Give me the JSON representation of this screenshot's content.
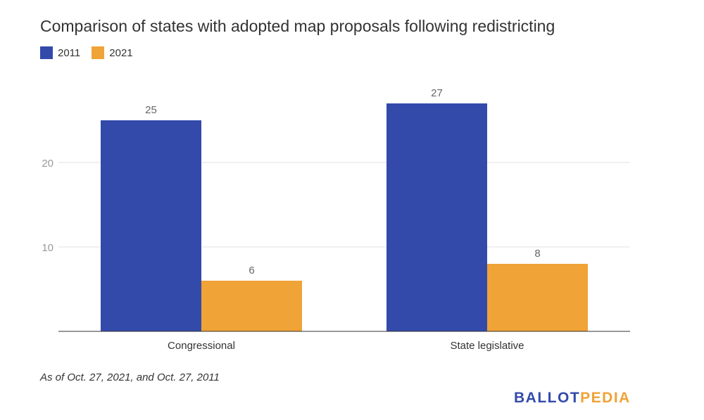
{
  "chart_data": {
    "type": "bar",
    "title": "Comparison of states with adopted map proposals following redistricting",
    "categories": [
      "Congressional",
      "State legislative"
    ],
    "series": [
      {
        "name": "2011",
        "color": "#334aab",
        "values": [
          25,
          27
        ]
      },
      {
        "name": "2021",
        "color": "#f0a336",
        "values": [
          6,
          8
        ]
      }
    ],
    "yticks": [
      10,
      20
    ],
    "ylim": [
      0,
      30
    ],
    "xlabel": "",
    "ylabel": "",
    "grid": true,
    "legend": "top-left"
  },
  "footnote": "As of Oct. 27, 2021, and Oct. 27, 2011",
  "logo": {
    "part1": "BALLOT",
    "part2": "PEDIA",
    "color1": "#334aab",
    "color2": "#f0a336"
  }
}
